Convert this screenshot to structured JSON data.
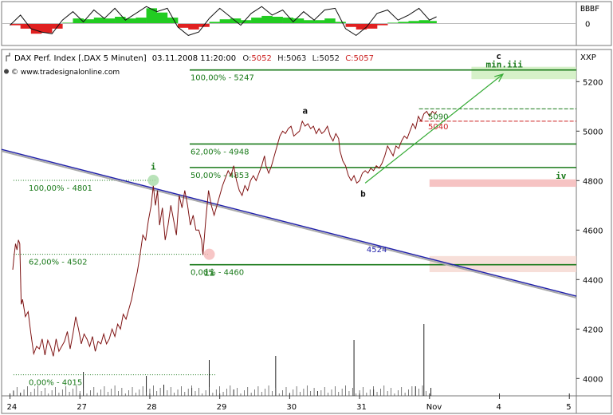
{
  "chart_data": {
    "type": "line",
    "header": {
      "name": "DAX Perf. Index [.DAX  5 Minuten]",
      "datetime": "03.11.2008 11:20:00",
      "open_label": "O:",
      "open": "5052",
      "high_label": "H:",
      "high": "5063",
      "low_label": "L:",
      "low": "5052",
      "close_label": "C:",
      "close": "5057",
      "source": "© www.tradesignalonline.com"
    },
    "unit": "XXP",
    "osc_label": "BBBF",
    "osc_zero": "0",
    "ylim": [
      3930,
      5330
    ],
    "y_ticks": [
      4000,
      4200,
      4400,
      4600,
      4800,
      5000,
      5200
    ],
    "y_tick_labels": [
      "4000",
      "4200",
      "4400",
      "4600",
      "4800",
      "5000",
      "5200"
    ],
    "x_ticks": [
      {
        "pos": 0,
        "label": "24"
      },
      {
        "pos": 1,
        "label": "27"
      },
      {
        "pos": 2,
        "label": "28"
      },
      {
        "pos": 3,
        "label": "29"
      },
      {
        "pos": 4,
        "label": "30"
      },
      {
        "pos": 5,
        "label": "31"
      },
      {
        "pos": 6,
        "label": "Nov"
      },
      {
        "pos": 7,
        "label": "4"
      },
      {
        "pos": 8,
        "label": "5"
      }
    ],
    "xlim": [
      -0.12,
      8.1
    ],
    "price_path": [
      [
        0.04,
        4440
      ],
      [
        0.06,
        4500
      ],
      [
        0.08,
        4545
      ],
      [
        0.1,
        4520
      ],
      [
        0.12,
        4560
      ],
      [
        0.14,
        4545
      ],
      [
        0.16,
        4300
      ],
      [
        0.18,
        4320
      ],
      [
        0.22,
        4250
      ],
      [
        0.26,
        4270
      ],
      [
        0.3,
        4180
      ],
      [
        0.34,
        4100
      ],
      [
        0.38,
        4130
      ],
      [
        0.42,
        4120
      ],
      [
        0.46,
        4160
      ],
      [
        0.5,
        4095
      ],
      [
        0.54,
        4155
      ],
      [
        0.58,
        4130
      ],
      [
        0.62,
        4090
      ],
      [
        0.66,
        4160
      ],
      [
        0.7,
        4110
      ],
      [
        0.74,
        4130
      ],
      [
        0.78,
        4150
      ],
      [
        0.82,
        4190
      ],
      [
        0.86,
        4120
      ],
      [
        0.9,
        4180
      ],
      [
        0.94,
        4250
      ],
      [
        0.98,
        4200
      ],
      [
        1.02,
        4140
      ],
      [
        1.06,
        4180
      ],
      [
        1.1,
        4160
      ],
      [
        1.14,
        4130
      ],
      [
        1.18,
        4170
      ],
      [
        1.22,
        4110
      ],
      [
        1.26,
        4150
      ],
      [
        1.3,
        4140
      ],
      [
        1.34,
        4180
      ],
      [
        1.38,
        4140
      ],
      [
        1.42,
        4160
      ],
      [
        1.46,
        4200
      ],
      [
        1.5,
        4170
      ],
      [
        1.54,
        4220
      ],
      [
        1.58,
        4200
      ],
      [
        1.62,
        4260
      ],
      [
        1.66,
        4240
      ],
      [
        1.7,
        4280
      ],
      [
        1.74,
        4320
      ],
      [
        1.78,
        4380
      ],
      [
        1.82,
        4430
      ],
      [
        1.86,
        4500
      ],
      [
        1.9,
        4580
      ],
      [
        1.94,
        4560
      ],
      [
        1.98,
        4640
      ],
      [
        2.02,
        4700
      ],
      [
        2.05,
        4780
      ],
      [
        2.08,
        4700
      ],
      [
        2.11,
        4760
      ],
      [
        2.14,
        4620
      ],
      [
        2.18,
        4690
      ],
      [
        2.22,
        4560
      ],
      [
        2.26,
        4620
      ],
      [
        2.3,
        4700
      ],
      [
        2.34,
        4640
      ],
      [
        2.38,
        4580
      ],
      [
        2.42,
        4740
      ],
      [
        2.46,
        4690
      ],
      [
        2.5,
        4760
      ],
      [
        2.54,
        4700
      ],
      [
        2.58,
        4620
      ],
      [
        2.62,
        4660
      ],
      [
        2.66,
        4600
      ],
      [
        2.7,
        4600
      ],
      [
        2.74,
        4560
      ],
      [
        2.76,
        4500
      ],
      [
        2.8,
        4640
      ],
      [
        2.84,
        4760
      ],
      [
        2.88,
        4700
      ],
      [
        2.92,
        4660
      ],
      [
        2.96,
        4700
      ],
      [
        3.0,
        4740
      ],
      [
        3.04,
        4780
      ],
      [
        3.08,
        4810
      ],
      [
        3.12,
        4840
      ],
      [
        3.16,
        4820
      ],
      [
        3.2,
        4860
      ],
      [
        3.24,
        4800
      ],
      [
        3.28,
        4760
      ],
      [
        3.32,
        4740
      ],
      [
        3.36,
        4780
      ],
      [
        3.4,
        4760
      ],
      [
        3.44,
        4800
      ],
      [
        3.48,
        4820
      ],
      [
        3.52,
        4800
      ],
      [
        3.56,
        4830
      ],
      [
        3.6,
        4860
      ],
      [
        3.64,
        4900
      ],
      [
        3.66,
        4860
      ],
      [
        3.7,
        4830
      ],
      [
        3.74,
        4860
      ],
      [
        3.78,
        4900
      ],
      [
        3.82,
        4940
      ],
      [
        3.86,
        4980
      ],
      [
        3.9,
        5000
      ],
      [
        3.94,
        4990
      ],
      [
        3.98,
        5010
      ],
      [
        4.02,
        5020
      ],
      [
        4.06,
        4980
      ],
      [
        4.1,
        4990
      ],
      [
        4.14,
        5000
      ],
      [
        4.18,
        5040
      ],
      [
        4.22,
        5020
      ],
      [
        4.26,
        5030
      ],
      [
        4.3,
        5010
      ],
      [
        4.34,
        5020
      ],
      [
        4.38,
        4990
      ],
      [
        4.42,
        5010
      ],
      [
        4.46,
        4990
      ],
      [
        4.5,
        5000
      ],
      [
        4.54,
        5020
      ],
      [
        4.58,
        4980
      ],
      [
        4.62,
        4960
      ],
      [
        4.66,
        4990
      ],
      [
        4.7,
        4970
      ],
      [
        4.72,
        4920
      ],
      [
        4.76,
        4880
      ],
      [
        4.8,
        4860
      ],
      [
        4.84,
        4820
      ],
      [
        4.88,
        4800
      ],
      [
        4.92,
        4820
      ],
      [
        4.96,
        4790
      ],
      [
        5.0,
        4800
      ],
      [
        5.04,
        4830
      ],
      [
        5.08,
        4840
      ],
      [
        5.12,
        4830
      ],
      [
        5.16,
        4850
      ],
      [
        5.2,
        4840
      ],
      [
        5.24,
        4860
      ],
      [
        5.28,
        4850
      ],
      [
        5.32,
        4870
      ],
      [
        5.36,
        4900
      ],
      [
        5.4,
        4940
      ],
      [
        5.44,
        4920
      ],
      [
        5.48,
        4900
      ],
      [
        5.52,
        4940
      ],
      [
        5.56,
        4930
      ],
      [
        5.6,
        4960
      ],
      [
        5.64,
        4980
      ],
      [
        5.68,
        4970
      ],
      [
        5.72,
        5000
      ],
      [
        5.76,
        5030
      ],
      [
        5.8,
        5010
      ],
      [
        5.84,
        5060
      ],
      [
        5.88,
        5040
      ],
      [
        5.92,
        5070
      ],
      [
        5.96,
        5080
      ],
      [
        6.0,
        5060
      ],
      [
        6.04,
        5080
      ],
      [
        6.08,
        5070
      ],
      [
        6.1,
        5080
      ]
    ],
    "downtrend": {
      "from": [
        -0.12,
        4926
      ],
      "to": [
        8.1,
        4333
      ],
      "color": "#2222aa",
      "label": "4524",
      "label_at": [
        5.1,
        4524
      ]
    },
    "levels": [
      {
        "value": 5247,
        "label": "100,00% - 5247",
        "from": 2.57,
        "to": 8.1,
        "color": "#1a7a1a",
        "label_at": 2.57
      },
      {
        "value": 4948,
        "label": "62,00% - 4948",
        "from": 2.57,
        "to": 8.1,
        "color": "#1a7a1a",
        "label_at": 2.57
      },
      {
        "value": 4853,
        "label": "50,00% - 4853",
        "from": 2.57,
        "to": 8.1,
        "color": "#1a7a1a",
        "label_at": 2.57
      },
      {
        "value": 4460,
        "label": "0,00% - 4460",
        "from": 2.57,
        "to": 8.1,
        "color": "#1a7a1a",
        "label_at": 2.57
      }
    ],
    "left_levels": [
      {
        "value": 4801,
        "label": "100,00% - 4801"
      },
      {
        "value": 4502,
        "label": "62,00% - 4502"
      },
      {
        "value": 4015,
        "label": "0,00% - 4015"
      }
    ],
    "zones": [
      {
        "from": 6.6,
        "to": 8.1,
        "low": 5210,
        "high": 5260,
        "color": "#cfeec0"
      },
      {
        "from": 6.0,
        "to": 8.1,
        "low": 4775,
        "high": 4805,
        "color": "#f5b8b8"
      },
      {
        "from": 6.0,
        "to": 8.1,
        "low": 4430,
        "high": 4495,
        "color": "#f6d9d2"
      }
    ],
    "right_levels": [
      {
        "value": 5090,
        "label": "5090",
        "color": "#1a7a1a"
      },
      {
        "value": 5040,
        "label": "5040",
        "color": "#cc2222"
      }
    ],
    "waves": [
      {
        "label": "i",
        "x": 2.05,
        "y": 4845,
        "color": "#1a7a1a"
      },
      {
        "label": "ii",
        "x": 2.85,
        "y": 4415,
        "color": "#1a7a1a"
      },
      {
        "label": "a",
        "x": 4.22,
        "y": 5070,
        "color": "#111111"
      },
      {
        "label": "b",
        "x": 5.05,
        "y": 4735,
        "color": "#111111"
      },
      {
        "label": "c",
        "x": 6.99,
        "y": 5292,
        "color": "#111111"
      },
      {
        "label": "min.iii",
        "x": 7.07,
        "y": 5258,
        "color": "#1a7a1a"
      },
      {
        "label": "iv",
        "x": 7.88,
        "y": 4808,
        "color": "#1a7a1a"
      }
    ],
    "arrow": {
      "from": [
        5.08,
        4790
      ],
      "to": [
        7.05,
        5230
      ],
      "color": "#33aa33"
    },
    "volume_spikes": [
      [
        0.05,
        6
      ],
      [
        0.15,
        4
      ],
      [
        1.05,
        30
      ],
      [
        1.95,
        25
      ],
      [
        2.2,
        14
      ],
      [
        2.6,
        10
      ],
      [
        2.85,
        45
      ],
      [
        3.2,
        8
      ],
      [
        3.8,
        50
      ],
      [
        4.4,
        6
      ],
      [
        4.92,
        70
      ],
      [
        5.2,
        8
      ],
      [
        5.8,
        12
      ],
      [
        5.92,
        90
      ],
      [
        6.02,
        10
      ]
    ],
    "oscillator": {
      "ylim": [
        -1.2,
        1.2
      ],
      "line": [
        [
          0.0,
          -0.1
        ],
        [
          0.15,
          0.5
        ],
        [
          0.3,
          -0.3
        ],
        [
          0.45,
          -0.5
        ],
        [
          0.6,
          -0.6
        ],
        [
          0.75,
          0.2
        ],
        [
          0.9,
          0.7
        ],
        [
          1.05,
          0.1
        ],
        [
          1.2,
          0.8
        ],
        [
          1.35,
          0.3
        ],
        [
          1.5,
          0.9
        ],
        [
          1.65,
          0.2
        ],
        [
          1.8,
          0.6
        ],
        [
          1.95,
          1.0
        ],
        [
          2.1,
          0.7
        ],
        [
          2.25,
          0.9
        ],
        [
          2.4,
          -0.2
        ],
        [
          2.55,
          -0.7
        ],
        [
          2.7,
          -0.5
        ],
        [
          2.85,
          0.3
        ],
        [
          3.0,
          0.9
        ],
        [
          3.15,
          0.4
        ],
        [
          3.3,
          -0.1
        ],
        [
          3.45,
          0.6
        ],
        [
          3.6,
          1.0
        ],
        [
          3.75,
          0.5
        ],
        [
          3.9,
          0.8
        ],
        [
          4.05,
          0.1
        ],
        [
          4.2,
          0.7
        ],
        [
          4.35,
          0.2
        ],
        [
          4.5,
          0.8
        ],
        [
          4.65,
          0.9
        ],
        [
          4.8,
          -0.3
        ],
        [
          4.95,
          -0.7
        ],
        [
          5.1,
          -0.2
        ],
        [
          5.25,
          0.6
        ],
        [
          5.4,
          0.8
        ],
        [
          5.55,
          0.2
        ],
        [
          5.7,
          0.5
        ],
        [
          5.85,
          0.9
        ],
        [
          6.0,
          0.2
        ],
        [
          6.1,
          0.4
        ]
      ],
      "bars": [
        [
          0.0,
          -0.1
        ],
        [
          0.15,
          -0.3
        ],
        [
          0.3,
          -0.6
        ],
        [
          0.45,
          -0.55
        ],
        [
          0.6,
          -0.3
        ],
        [
          0.75,
          0.05
        ],
        [
          0.9,
          0.3
        ],
        [
          1.05,
          0.25
        ],
        [
          1.2,
          0.35
        ],
        [
          1.35,
          0.3
        ],
        [
          1.5,
          0.4
        ],
        [
          1.65,
          0.3
        ],
        [
          1.8,
          0.35
        ],
        [
          1.95,
          0.9
        ],
        [
          2.1,
          0.65
        ],
        [
          2.25,
          0.35
        ],
        [
          2.4,
          -0.25
        ],
        [
          2.55,
          -0.35
        ],
        [
          2.7,
          -0.2
        ],
        [
          2.85,
          0.1
        ],
        [
          3.0,
          0.25
        ],
        [
          3.15,
          0.3
        ],
        [
          3.3,
          0.2
        ],
        [
          3.45,
          0.35
        ],
        [
          3.6,
          0.45
        ],
        [
          3.75,
          0.4
        ],
        [
          3.9,
          0.35
        ],
        [
          4.05,
          0.3
        ],
        [
          4.2,
          0.2
        ],
        [
          4.35,
          0.2
        ],
        [
          4.5,
          0.3
        ],
        [
          4.65,
          0.1
        ],
        [
          4.8,
          -0.2
        ],
        [
          4.95,
          -0.35
        ],
        [
          5.1,
          -0.3
        ],
        [
          5.25,
          -0.1
        ],
        [
          5.4,
          0.05
        ],
        [
          5.55,
          0.1
        ],
        [
          5.7,
          0.15
        ],
        [
          5.85,
          0.2
        ],
        [
          6.0,
          0.15
        ],
        [
          6.1,
          0.1
        ]
      ]
    }
  }
}
